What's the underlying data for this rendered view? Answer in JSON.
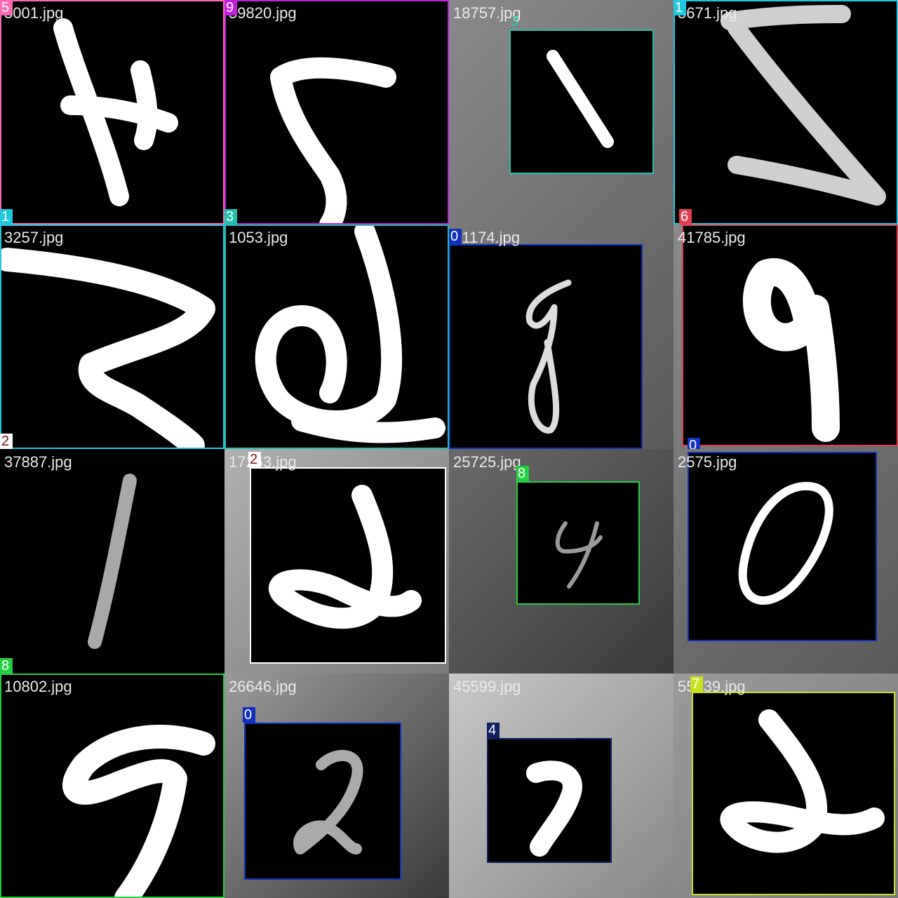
{
  "tiles": [
    {
      "file": "5001.jpg",
      "tags": [
        "5",
        "1"
      ]
    },
    {
      "file": "59820.jpg",
      "tags": [
        "9",
        "3"
      ]
    },
    {
      "file": "18757.jpg",
      "tags": [
        "3"
      ]
    },
    {
      "file": "5671.jpg",
      "tags": [
        "1",
        "6"
      ]
    },
    {
      "file": "3257.jpg",
      "tags": [
        "2"
      ]
    },
    {
      "file": "1053.jpg",
      "tags": []
    },
    {
      "file": "41174.jpg",
      "tags": [
        "0"
      ]
    },
    {
      "file": "41785.jpg",
      "tags": [
        "0"
      ]
    },
    {
      "file": "37887.jpg",
      "tags": [
        "8"
      ]
    },
    {
      "file": "17263.jpg",
      "tags": [
        "2"
      ]
    },
    {
      "file": "25725.jpg",
      "tags": [
        "8"
      ]
    },
    {
      "file": "2575.jpg",
      "tags": []
    },
    {
      "file": "10802.jpg",
      "tags": []
    },
    {
      "file": "26646.jpg",
      "tags": [
        "0"
      ]
    },
    {
      "file": "45599.jpg",
      "tags": [
        "4"
      ]
    },
    {
      "file": "55139.jpg",
      "tags": [
        "7"
      ]
    }
  ],
  "colors": {
    "pink": "#ff69b4",
    "magenta": "#c020e0",
    "teal": "#20c0b0",
    "cyan": "#20c8e0",
    "red": "#e04050",
    "blue": "#1030c0",
    "navy": "#102060",
    "green": "#20d040",
    "white": "#ffffff",
    "yellow": "#c8e020",
    "maroon": "#801010"
  }
}
